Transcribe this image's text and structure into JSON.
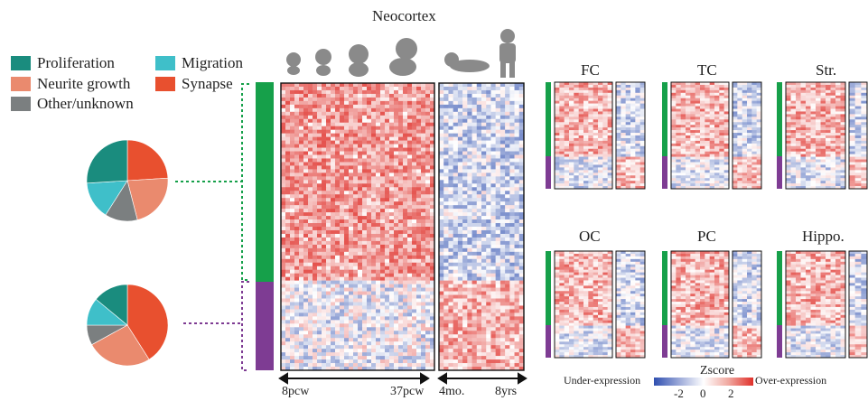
{
  "title": "Neocortex",
  "legend": [
    {
      "label": "Proliferation",
      "color": "#1a8c7e"
    },
    {
      "label": "Migration",
      "color": "#3fbfc9"
    },
    {
      "label": "Neurite growth",
      "color": "#ea8a6e"
    },
    {
      "label": "Synapse",
      "color": "#e8502f"
    },
    {
      "label": "Other/unknown",
      "color": "#7b7f80"
    }
  ],
  "pies": [
    {
      "name": "upper-cluster",
      "slices": [
        {
          "category": "Synapse",
          "fraction": 0.24
        },
        {
          "category": "Neurite growth",
          "fraction": 0.22
        },
        {
          "category": "Other/unknown",
          "fraction": 0.13
        },
        {
          "category": "Migration",
          "fraction": 0.15
        },
        {
          "category": "Proliferation",
          "fraction": 0.26
        }
      ]
    },
    {
      "name": "lower-cluster",
      "slices": [
        {
          "category": "Synapse",
          "fraction": 0.41
        },
        {
          "category": "Neurite growth",
          "fraction": 0.26
        },
        {
          "category": "Other/unknown",
          "fraction": 0.08
        },
        {
          "category": "Migration",
          "fraction": 0.11
        },
        {
          "category": "Proliferation",
          "fraction": 0.14
        }
      ]
    }
  ],
  "cluster_colors": {
    "upper": "#16a04a",
    "lower": "#7e3c93"
  },
  "axis": {
    "prenatal_start": "8pcw",
    "prenatal_end": "37pcw",
    "postnatal_start": "4mo.",
    "postnatal_end": "8yrs"
  },
  "regions": [
    {
      "label": "FC"
    },
    {
      "label": "TC"
    },
    {
      "label": "Str."
    },
    {
      "label": "OC"
    },
    {
      "label": "PC"
    },
    {
      "label": "Hippo."
    }
  ],
  "colorbar": {
    "title": "Zscore",
    "left_label": "Under-expression",
    "right_label": "Over-expression",
    "ticks": [
      "-2",
      "0",
      "2"
    ],
    "low_color": "#2f4fb0",
    "mid_color": "#ffffff",
    "high_color": "#e0302a"
  }
}
